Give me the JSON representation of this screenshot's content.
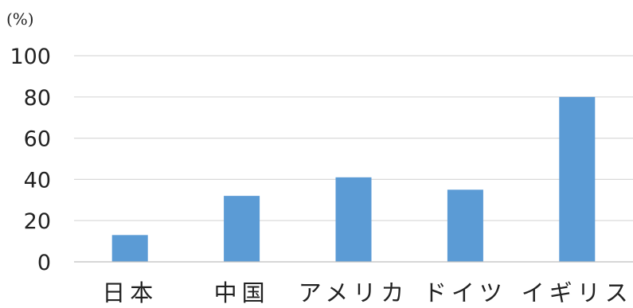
{
  "chart_data": {
    "type": "bar",
    "unit_label": "(%)",
    "categories": [
      "日本",
      "中国",
      "アメリカ",
      "ドイツ",
      "イギリス"
    ],
    "values": [
      13,
      32,
      41,
      35,
      80
    ],
    "ylim": [
      0,
      100
    ],
    "yticks": [
      "0",
      "20",
      "40",
      "60",
      "80",
      "100"
    ],
    "grid": true,
    "legend": "none",
    "bar_color": "#5b9bd5"
  }
}
